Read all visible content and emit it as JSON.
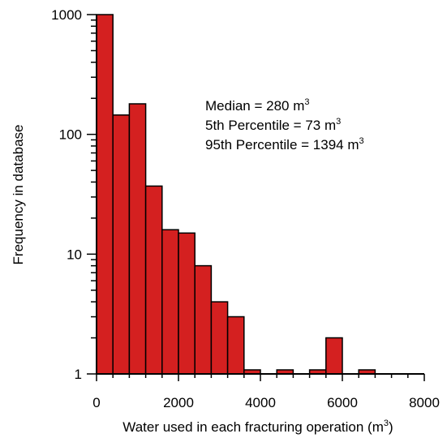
{
  "chart_data": {
    "type": "bar",
    "xlabel": "Water used in each fracturing operation (m",
    "xlabel_sup": "3",
    "xlabel_suffix": ")",
    "ylabel": "Frequency in database",
    "xlim": [
      0,
      8000
    ],
    "ylim": [
      1,
      1000
    ],
    "yscale": "log",
    "x_ticks": [
      "0",
      "2000",
      "4000",
      "6000",
      "8000"
    ],
    "y_ticks": [
      "1",
      "10",
      "100",
      "1000"
    ],
    "bin_width": 400,
    "bars": [
      {
        "x0": 0,
        "x1": 400,
        "value": 1000
      },
      {
        "x0": 400,
        "x1": 800,
        "value": 145
      },
      {
        "x0": 800,
        "x1": 1200,
        "value": 180
      },
      {
        "x0": 1200,
        "x1": 1600,
        "value": 37
      },
      {
        "x0": 1600,
        "x1": 2000,
        "value": 16
      },
      {
        "x0": 2000,
        "x1": 2400,
        "value": 15
      },
      {
        "x0": 2400,
        "x1": 2800,
        "value": 8
      },
      {
        "x0": 2800,
        "x1": 3200,
        "value": 4
      },
      {
        "x0": 3200,
        "x1": 3600,
        "value": 3
      },
      {
        "x0": 3600,
        "x1": 4000,
        "value": 1
      },
      {
        "x0": 4400,
        "x1": 4800,
        "value": 1
      },
      {
        "x0": 5200,
        "x1": 5600,
        "value": 1
      },
      {
        "x0": 5600,
        "x1": 6000,
        "value": 2
      },
      {
        "x0": 6400,
        "x1": 6800,
        "value": 1
      }
    ],
    "bar_color": "#d42020",
    "grid": false,
    "annotations": [
      {
        "text": "Median = 280 m",
        "sup": "3"
      },
      {
        "text": "5th Percentile = 73 m",
        "sup": "3"
      },
      {
        "text": "95th Percentile = 1394 m",
        "sup": "3"
      }
    ]
  }
}
